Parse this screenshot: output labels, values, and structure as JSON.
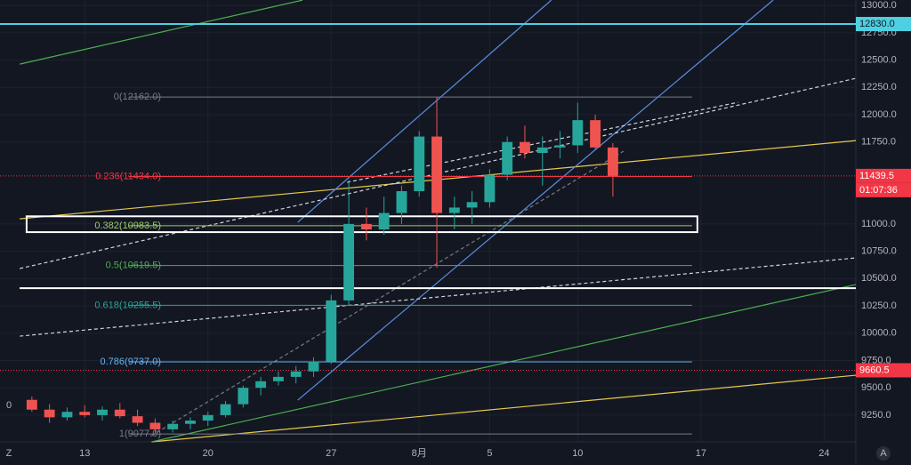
{
  "chart_data": {
    "type": "candlestick",
    "x": [
      10,
      11,
      12,
      13,
      14,
      15,
      16,
      17,
      18,
      19,
      20,
      21,
      22,
      23,
      24,
      25,
      26,
      27,
      28,
      29,
      30,
      31,
      32,
      33,
      34,
      35,
      36,
      37,
      38,
      39,
      40,
      41,
      42,
      43
    ],
    "open": [
      9390,
      9300,
      9230,
      9280,
      9250,
      9300,
      9240,
      9180,
      9120,
      9170,
      9200,
      9250,
      9350,
      9500,
      9560,
      9600,
      9650,
      9740,
      10300,
      11000,
      10950,
      11100,
      11300,
      11800,
      11100,
      11150,
      11200,
      11450,
      11750,
      11650,
      11700,
      11720,
      11950,
      11700
    ],
    "high": [
      9420,
      9350,
      9320,
      9340,
      9330,
      9360,
      9300,
      9220,
      9200,
      9230,
      9280,
      9380,
      9520,
      9600,
      9650,
      9700,
      9780,
      10350,
      11400,
      11150,
      11250,
      11350,
      11850,
      12162,
      11250,
      11300,
      11500,
      11800,
      11900,
      11800,
      11850,
      12110,
      12000,
      11740
    ],
    "low": [
      9280,
      9180,
      9200,
      9230,
      9200,
      9220,
      9150,
      9077,
      9090,
      9120,
      9150,
      9230,
      9320,
      9430,
      9520,
      9540,
      9600,
      9720,
      10250,
      10850,
      10900,
      11000,
      11250,
      10600,
      10950,
      11000,
      11150,
      11400,
      11600,
      11350,
      11600,
      11650,
      11680,
      11250
    ],
    "close": [
      9300,
      9230,
      9280,
      9250,
      9300,
      9240,
      9180,
      9120,
      9170,
      9200,
      9250,
      9350,
      9500,
      9560,
      9600,
      9650,
      9740,
      10300,
      11000,
      10950,
      11100,
      11300,
      11800,
      11100,
      11150,
      11200,
      11450,
      11750,
      11650,
      11700,
      11720,
      11950,
      11700,
      11439.5
    ],
    "up_color": "#26a69a",
    "down_color": "#ef5350",
    "xlim": [
      9.3,
      56.8
    ],
    "xticks": [
      {
        "value": 13,
        "label": "13"
      },
      {
        "value": 20,
        "label": "20"
      },
      {
        "value": 27,
        "label": "27"
      },
      {
        "value": 32,
        "label": "8月"
      },
      {
        "value": 36,
        "label": "5"
      },
      {
        "value": 41,
        "label": "10"
      },
      {
        "value": 48,
        "label": "17"
      },
      {
        "value": 55,
        "label": "24"
      }
    ],
    "ylim": [
      9005,
      13050
    ],
    "yticks": [
      {
        "value": 13000,
        "label": "13000.0"
      },
      {
        "value": 12750,
        "label": "12750.0"
      },
      {
        "value": 12500,
        "label": "12500.0"
      },
      {
        "value": 12250,
        "label": "12250.0"
      },
      {
        "value": 12000,
        "label": "12000.0"
      },
      {
        "value": 11750,
        "label": "11750.0"
      },
      {
        "value": 11000,
        "label": "11000.0"
      },
      {
        "value": 10750,
        "label": "10750.0"
      },
      {
        "value": 10500,
        "label": "10500.0"
      },
      {
        "value": 10250,
        "label": "10250.0"
      },
      {
        "value": 10000,
        "label": "10000.0"
      },
      {
        "value": 9750,
        "label": "9750.0"
      },
      {
        "value": 9500,
        "label": "9500.0"
      },
      {
        "value": 9250,
        "label": "9250.0"
      }
    ],
    "grid": true,
    "fib": [
      {
        "label": "0(12162.0)",
        "value": 12162,
        "color": "#787b86"
      },
      {
        "label": "0.236(11434.0)",
        "value": 11434,
        "color": "#f23645"
      },
      {
        "label": "0.382(10983.5)",
        "value": 10983.5,
        "color": "#9ccc65"
      },
      {
        "label": "0.5(10619.5)",
        "value": 10619.5,
        "color": "#4caf50"
      },
      {
        "label": "0.618(10255.5)",
        "value": 10255.5,
        "color": "#26a69a"
      },
      {
        "label": "0.786(9737.0)",
        "value": 9737,
        "color": "#64b5f6"
      },
      {
        "label": "1(9077.0)",
        "value": 9077,
        "color": "#787b86"
      }
    ],
    "fib_x": [
      15.5,
      47.5
    ],
    "levels": [
      {
        "value": 12830,
        "label": "12830.0",
        "color": "#4dd0e1",
        "style": "solid"
      },
      {
        "value": 11439.5,
        "label": "11439.5",
        "color": "#f23645",
        "style": "dotted"
      },
      {
        "value": 9660.5,
        "label": "9660.5",
        "color": "#f23645",
        "style": "dotted"
      }
    ],
    "countdown": "01:07:36",
    "box": {
      "low": 10925,
      "high": 11070,
      "x": [
        9.7,
        47.8
      ]
    },
    "hline": 10412,
    "trendlines": [
      {
        "points": [
          9.31,
          12463,
          25.37,
          13049
        ],
        "color": "#4caf50",
        "dash": false
      },
      {
        "points": [
          9.31,
          11047,
          56.8,
          11763
        ],
        "color": "#e6c84b",
        "dash": false
      },
      {
        "points": [
          16.8,
          9005,
          56.8,
          9615
        ],
        "color": "#e6c84b",
        "dash": false
      },
      {
        "points": [
          16.8,
          9005,
          56.8,
          10445
        ],
        "color": "#4caf50",
        "dash": false
      },
      {
        "points": [
          25.1,
          11015,
          39.5,
          13049
        ],
        "color": "#5b8de0",
        "dash": false
      },
      {
        "points": [
          25.1,
          9387,
          52.1,
          13049
        ],
        "color": "#5b8de0",
        "dash": false
      },
      {
        "points": [
          9.31,
          10592,
          56.8,
          12333
        ],
        "color": "#d1d4dc",
        "dash": true
      },
      {
        "points": [
          9.31,
          9973,
          56.8,
          10689
        ],
        "color": "#d1d4dc",
        "dash": true
      },
      {
        "points": [
          27.9,
          11381,
          50.1,
          12113
        ],
        "color": "#d1d4dc",
        "dash": true
      },
      {
        "points": [
          16.8,
          9062,
          43.6,
          11666
        ],
        "color": "#787b86",
        "dash": true
      }
    ],
    "left_label": "0",
    "buttons": [
      "Z",
      "A"
    ]
  }
}
